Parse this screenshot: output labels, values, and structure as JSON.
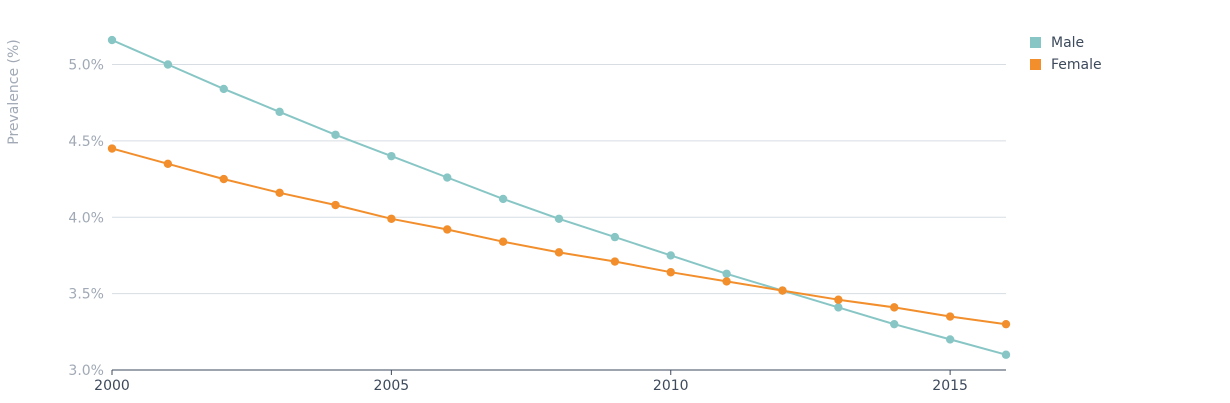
{
  "chart_data": {
    "type": "line",
    "ylabel": "Prevalence (%)",
    "xlabel": "",
    "x": [
      2000,
      2001,
      2002,
      2003,
      2004,
      2005,
      2006,
      2007,
      2008,
      2009,
      2010,
      2011,
      2012,
      2013,
      2014,
      2015,
      2016
    ],
    "series": [
      {
        "name": "Male",
        "color": "#88c6c6",
        "values": [
          5.16,
          5.0,
          4.84,
          4.69,
          4.54,
          4.4,
          4.26,
          4.12,
          3.99,
          3.87,
          3.75,
          3.63,
          3.52,
          3.41,
          3.3,
          3.2,
          3.1
        ]
      },
      {
        "name": "Female",
        "color": "#f28e2b",
        "values": [
          4.45,
          4.35,
          4.25,
          4.16,
          4.08,
          3.99,
          3.92,
          3.84,
          3.77,
          3.71,
          3.64,
          3.58,
          3.52,
          3.46,
          3.41,
          3.35,
          3.3
        ]
      }
    ],
    "yticks": [
      "3.0%",
      "3.5%",
      "4.0%",
      "4.5%",
      "5.0%"
    ],
    "xticks": [
      "2000",
      "2005",
      "2010",
      "2015"
    ],
    "xlim": [
      2000,
      2016
    ],
    "ylim": [
      3.0,
      5.25
    ],
    "grid": true,
    "legend_position": "top-right"
  }
}
